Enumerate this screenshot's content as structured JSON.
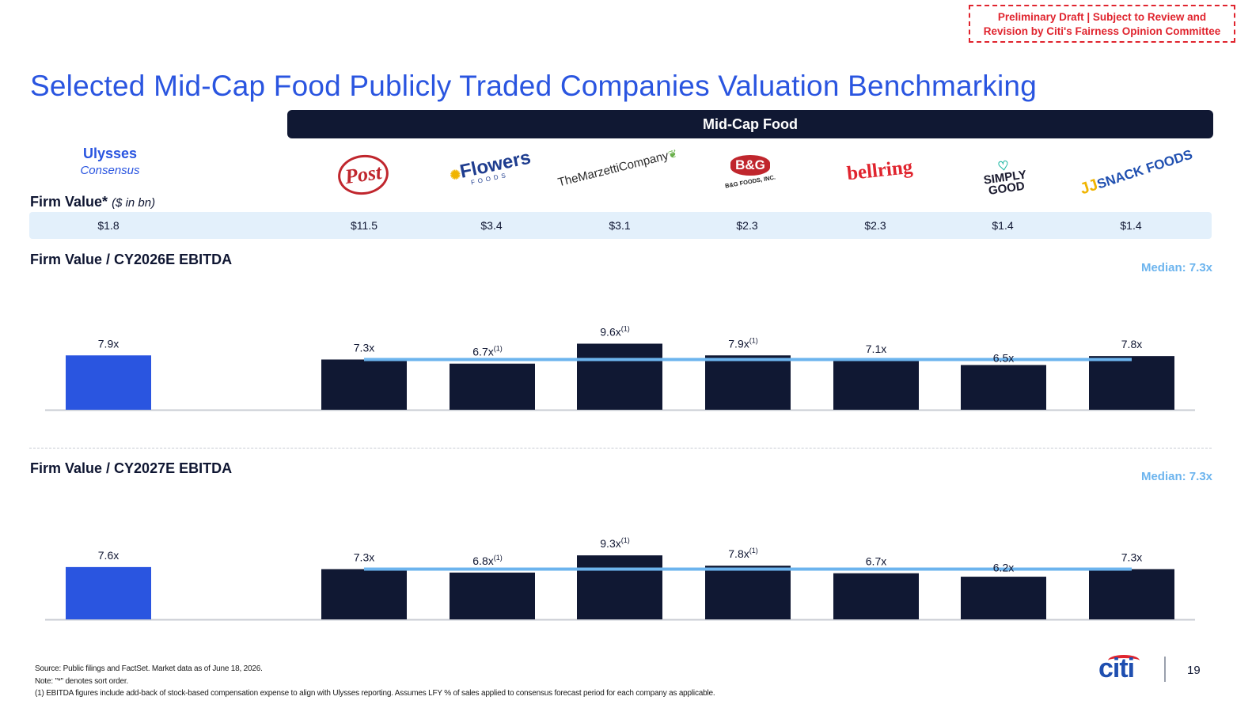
{
  "draft_notice": {
    "line1": "Preliminary Draft | Subject to Review and",
    "line2": "Revision by Citi's Fairness Opinion Committee"
  },
  "title": "Selected Mid-Cap Food Publicly Traded Companies Valuation Benchmarking",
  "group_header": "Mid-Cap Food",
  "target": {
    "name": "Ulysses",
    "subtitle": "Consensus"
  },
  "logos": {
    "post": "Post",
    "flowers": "Flowers",
    "flowers_sub": "FOODS",
    "marzetti": "TheMarzettiCompany",
    "bg": "B&G",
    "bg_sub": "B&G FOODS, INC.",
    "belling": "bellring",
    "simply_line1": "SIMPLY",
    "simply_line2": "GOOD",
    "jj_mark": "JJ",
    "jj_text": "SNACK FOODS"
  },
  "colors": {
    "accent_blue": "#2a55e0",
    "navy": "#101833",
    "median_line": "#6cb4ee",
    "alert_red": "#e0242e",
    "row_bg": "#e3f0fb"
  },
  "firm_value": {
    "label": "Firm Value*",
    "unit": "($ in bn)",
    "values": [
      "$1.8",
      "$11.5",
      "$3.4",
      "$3.1",
      "$2.3",
      "$2.3",
      "$1.4",
      "$1.4"
    ]
  },
  "chart_data": [
    {
      "type": "bar",
      "title": "Firm Value / CY2026E EBITDA",
      "categories": [
        "Ulysses",
        "Post",
        "Flowers",
        "Marzetti",
        "B&G",
        "BellRing",
        "Simply Good",
        "J&J Snack Foods"
      ],
      "values": [
        7.9,
        7.3,
        6.7,
        9.6,
        7.9,
        7.1,
        6.5,
        7.8
      ],
      "labels": [
        "7.9x",
        "7.3x",
        "6.7x",
        "9.6x",
        "7.9x",
        "7.1x",
        "6.5x",
        "7.8x"
      ],
      "footnote_marks": [
        "",
        "",
        "(1)",
        "(1)",
        "(1)",
        "",
        "",
        ""
      ],
      "highlight_index": 0,
      "median": 7.3,
      "median_label": "Median: 7.3x"
    },
    {
      "type": "bar",
      "title": "Firm Value / CY2027E EBITDA",
      "categories": [
        "Ulysses",
        "Post",
        "Flowers",
        "Marzetti",
        "B&G",
        "BellRing",
        "Simply Good",
        "J&J Snack Foods"
      ],
      "values": [
        7.6,
        7.3,
        6.8,
        9.3,
        7.8,
        6.7,
        6.2,
        7.3
      ],
      "labels": [
        "7.6x",
        "7.3x",
        "6.8x",
        "9.3x",
        "7.8x",
        "6.7x",
        "6.2x",
        "7.3x"
      ],
      "footnote_marks": [
        "",
        "",
        "(1)",
        "(1)",
        "(1)",
        "",
        "",
        ""
      ],
      "highlight_index": 0,
      "median": 7.3,
      "median_label": "Median: 7.3x"
    }
  ],
  "footnotes": {
    "source": "Source: Public filings and FactSet. Market data as of June 18, 2026.",
    "note": "Note: \"*\" denotes sort order.",
    "note1": "(1) EBITDA figures include add-back of stock-based compensation expense to align with Ulysses reporting. Assumes LFY % of sales applied to consensus forecast period for each company as applicable."
  },
  "page_number": "19",
  "brand": "citi"
}
